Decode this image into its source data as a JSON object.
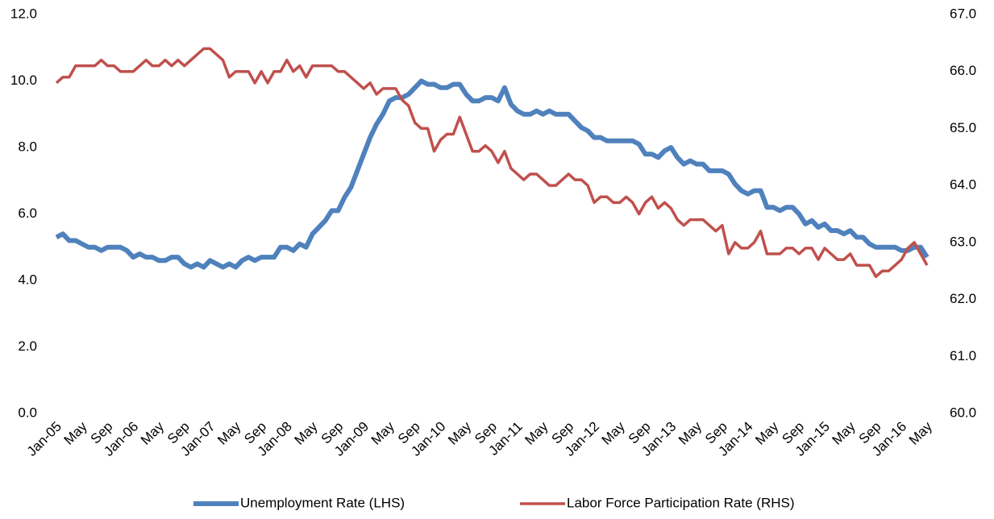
{
  "chart_data": {
    "type": "line",
    "categories": [
      "Jan-05",
      null,
      null,
      null,
      "May",
      null,
      null,
      null,
      "Sep",
      null,
      null,
      null,
      "Jan-06",
      null,
      null,
      null,
      "May",
      null,
      null,
      null,
      "Sep",
      null,
      null,
      null,
      "Jan-07",
      null,
      null,
      null,
      "May",
      null,
      null,
      null,
      "Sep",
      null,
      null,
      null,
      "Jan-08",
      null,
      null,
      null,
      "May",
      null,
      null,
      null,
      "Sep",
      null,
      null,
      null,
      "Jan-09",
      null,
      null,
      null,
      "May",
      null,
      null,
      null,
      "Sep",
      null,
      null,
      null,
      "Jan-10",
      null,
      null,
      null,
      "May",
      null,
      null,
      null,
      "Sep",
      null,
      null,
      null,
      "Jan-11",
      null,
      null,
      null,
      "May",
      null,
      null,
      null,
      "Sep",
      null,
      null,
      null,
      "Jan-12",
      null,
      null,
      null,
      "May",
      null,
      null,
      null,
      "Sep",
      null,
      null,
      null,
      "Jan-13",
      null,
      null,
      null,
      "May",
      null,
      null,
      null,
      "Sep",
      null,
      null,
      null,
      "Jan-14",
      null,
      null,
      null,
      "May",
      null,
      null,
      null,
      "Sep",
      null,
      null,
      null,
      "Jan-15",
      null,
      null,
      null,
      "May",
      null,
      null,
      null,
      "Sep",
      null,
      null,
      null,
      "Jan-16",
      null,
      null,
      null,
      "May"
    ],
    "series": [
      {
        "name": "Unemployment Rate (LHS)",
        "color": "#4f81bd",
        "axis": "y",
        "values": [
          5.3,
          5.4,
          5.2,
          5.2,
          5.1,
          5.0,
          5.0,
          4.9,
          5.0,
          5.0,
          5.0,
          4.9,
          4.7,
          4.8,
          4.7,
          4.7,
          4.6,
          4.6,
          4.7,
          4.7,
          4.5,
          4.4,
          4.5,
          4.4,
          4.6,
          4.5,
          4.4,
          4.5,
          4.4,
          4.6,
          4.7,
          4.6,
          4.7,
          4.7,
          4.7,
          5.0,
          5.0,
          4.9,
          5.1,
          5.0,
          5.4,
          5.6,
          5.8,
          6.1,
          6.1,
          6.5,
          6.8,
          7.3,
          7.8,
          8.3,
          8.7,
          9.0,
          9.4,
          9.5,
          9.5,
          9.6,
          9.8,
          10.0,
          9.9,
          9.9,
          9.8,
          9.8,
          9.9,
          9.9,
          9.6,
          9.4,
          9.4,
          9.5,
          9.5,
          9.4,
          9.8,
          9.3,
          9.1,
          9.0,
          9.0,
          9.1,
          9.0,
          9.1,
          9.0,
          9.0,
          9.0,
          8.8,
          8.6,
          8.5,
          8.3,
          8.3,
          8.2,
          8.2,
          8.2,
          8.2,
          8.2,
          8.1,
          7.8,
          7.8,
          7.7,
          7.9,
          8.0,
          7.7,
          7.5,
          7.6,
          7.5,
          7.5,
          7.3,
          7.3,
          7.3,
          7.2,
          6.9,
          6.7,
          6.6,
          6.7,
          6.7,
          6.2,
          6.2,
          6.1,
          6.2,
          6.2,
          6.0,
          5.7,
          5.8,
          5.6,
          5.7,
          5.5,
          5.5,
          5.4,
          5.5,
          5.3,
          5.3,
          5.1,
          5.0,
          5.0,
          5.0,
          5.0,
          4.9,
          4.9,
          5.0,
          5.0,
          4.7
        ]
      },
      {
        "name": "Labor Force Participation Rate (RHS)",
        "color": "#c0504d",
        "axis": "y2",
        "values": [
          65.8,
          65.9,
          65.9,
          66.1,
          66.1,
          66.1,
          66.1,
          66.2,
          66.1,
          66.1,
          66.0,
          66.0,
          66.0,
          66.1,
          66.2,
          66.1,
          66.1,
          66.2,
          66.1,
          66.2,
          66.1,
          66.2,
          66.3,
          66.4,
          66.4,
          66.3,
          66.2,
          65.9,
          66.0,
          66.0,
          66.0,
          65.8,
          66.0,
          65.8,
          66.0,
          66.0,
          66.2,
          66.0,
          66.1,
          65.9,
          66.1,
          66.1,
          66.1,
          66.1,
          66.0,
          66.0,
          65.9,
          65.8,
          65.7,
          65.8,
          65.6,
          65.7,
          65.7,
          65.7,
          65.5,
          65.4,
          65.1,
          65.0,
          65.0,
          64.6,
          64.8,
          64.9,
          64.9,
          65.2,
          64.9,
          64.6,
          64.6,
          64.7,
          64.6,
          64.4,
          64.6,
          64.3,
          64.2,
          64.1,
          64.2,
          64.2,
          64.1,
          64.0,
          64.0,
          64.1,
          64.2,
          64.1,
          64.1,
          64.0,
          63.7,
          63.8,
          63.8,
          63.7,
          63.7,
          63.8,
          63.7,
          63.5,
          63.7,
          63.8,
          63.6,
          63.7,
          63.6,
          63.4,
          63.3,
          63.4,
          63.4,
          63.4,
          63.3,
          63.2,
          63.3,
          62.8,
          63.0,
          62.9,
          62.9,
          63.0,
          63.2,
          62.8,
          62.8,
          62.8,
          62.9,
          62.9,
          62.8,
          62.9,
          62.9,
          62.7,
          62.9,
          62.8,
          62.7,
          62.7,
          62.8,
          62.6,
          62.6,
          62.6,
          62.4,
          62.5,
          62.5,
          62.6,
          62.7,
          62.9,
          63.0,
          62.8,
          62.6
        ]
      }
    ],
    "ylim": [
      0,
      12
    ],
    "yticks": [
      {
        "value": 0,
        "label": "0.0"
      },
      {
        "value": 2,
        "label": "2.0"
      },
      {
        "value": 4,
        "label": "4.0"
      },
      {
        "value": 6,
        "label": "6.0"
      },
      {
        "value": 8,
        "label": "8.0"
      },
      {
        "value": 10,
        "label": "10.0"
      },
      {
        "value": 12,
        "label": "12.0"
      }
    ],
    "y2lim": [
      60,
      67
    ],
    "y2ticks": [
      {
        "value": 60,
        "label": "60.0"
      },
      {
        "value": 61,
        "label": "61.0"
      },
      {
        "value": 62,
        "label": "62.0"
      },
      {
        "value": 63,
        "label": "63.0"
      },
      {
        "value": 64,
        "label": "64.0"
      },
      {
        "value": 65,
        "label": "65.0"
      },
      {
        "value": 66,
        "label": "66.0"
      },
      {
        "value": 67,
        "label": "67.0"
      }
    ],
    "legend": "bottom"
  }
}
